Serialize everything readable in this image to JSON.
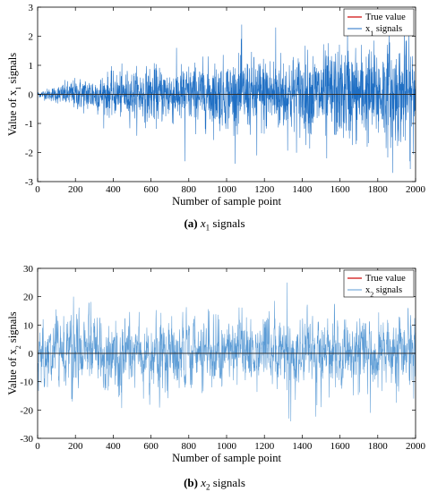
{
  "chart_data": [
    {
      "type": "line",
      "panel_label": "(a)",
      "caption_symbol": "x",
      "caption_subscript": "1",
      "caption_suffix": "signals",
      "xlabel": "Number of sample point",
      "ylabel": "Value of x",
      "ylabel_subscript": "1",
      "ylabel_suffix": " signals",
      "xlim": [
        0,
        2000
      ],
      "ylim": [
        -3,
        3
      ],
      "xticks": [
        0,
        200,
        400,
        600,
        800,
        1000,
        1200,
        1400,
        1600,
        1800,
        2000
      ],
      "yticks": [
        -3,
        -2,
        -1,
        0,
        1,
        2,
        3
      ],
      "grid": false,
      "legend_position": "top-right",
      "series": [
        {
          "name": "True value",
          "color": "#d62728",
          "constant": 0
        },
        {
          "name": "x",
          "name_subscript": "1",
          "name_suffix": " signals",
          "color": "#1f6fc4",
          "noise_envelope": [
            [
              0,
              0.1
            ],
            [
              100,
              0.3
            ],
            [
              200,
              0.55
            ],
            [
              400,
              0.75
            ],
            [
              600,
              0.95
            ],
            [
              800,
              1.05
            ],
            [
              1000,
              1.2
            ],
            [
              1200,
              1.35
            ],
            [
              1400,
              1.45
            ],
            [
              1600,
              1.6
            ],
            [
              1800,
              1.7
            ],
            [
              2000,
              1.8
            ]
          ],
          "extremes": [
            [
              1080,
              2.4
            ],
            [
              1260,
              2.3
            ],
            [
              1640,
              2.4
            ],
            [
              1860,
              2.2
            ],
            [
              1940,
              2.3
            ],
            [
              1880,
              -2.7
            ],
            [
              1970,
              -2.3
            ],
            [
              1530,
              -2.2
            ],
            [
              780,
              -2.3
            ],
            [
              1160,
              -2.1
            ]
          ]
        }
      ]
    },
    {
      "type": "line",
      "panel_label": "(b)",
      "caption_symbol": "x",
      "caption_subscript": "2",
      "caption_suffix": "signals",
      "xlabel": "Number of sample point",
      "ylabel": "Value of x",
      "ylabel_subscript": "2",
      "ylabel_suffix": " signals",
      "xlim": [
        0,
        2000
      ],
      "ylim": [
        -30,
        30
      ],
      "xticks": [
        0,
        200,
        400,
        600,
        800,
        1000,
        1200,
        1400,
        1600,
        1800,
        2000
      ],
      "yticks": [
        -30,
        -20,
        -10,
        0,
        10,
        20,
        30
      ],
      "grid": false,
      "legend_position": "top-right",
      "series": [
        {
          "name": "True value",
          "color": "#d62728",
          "constant": 0
        },
        {
          "name": "x",
          "name_subscript": "2",
          "name_suffix": " signals",
          "color": "#5b9bd5",
          "noise_envelope": [
            [
              0,
              7
            ],
            [
              2000,
              7
            ]
          ],
          "extremes": [
            [
              190,
              20
            ],
            [
              180,
              -16
            ],
            [
              560,
              -16
            ],
            [
              1320,
              25
            ],
            [
              1340,
              -24
            ],
            [
              1330,
              -23
            ],
            [
              1570,
              17
            ],
            [
              1760,
              -21
            ],
            [
              1960,
              16
            ],
            [
              1990,
              -16
            ],
            [
              1500,
              -19
            ],
            [
              270,
              14
            ]
          ]
        }
      ]
    }
  ]
}
